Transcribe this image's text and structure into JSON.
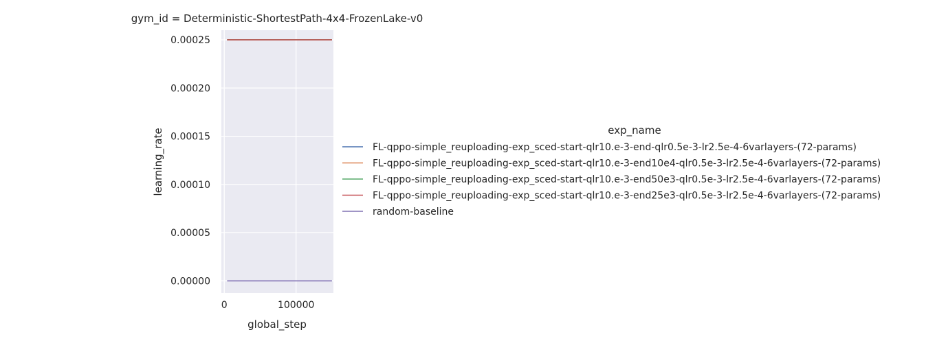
{
  "chart_data": {
    "type": "line",
    "title": "gym_id = Deterministic-ShortestPath-4x4-FrozenLake-v0",
    "xlabel": "global_step",
    "ylabel": "learning_rate",
    "xlim": [
      -4000,
      152000
    ],
    "ylim": [
      -1.25e-05,
      0.00026
    ],
    "xticks": [
      0,
      100000
    ],
    "xtick_labels": [
      "0",
      "100000"
    ],
    "yticks": [
      0,
      5e-05,
      0.0001,
      0.00015,
      0.0002,
      0.00025
    ],
    "ytick_labels": [
      "0.00000",
      "0.00005",
      "0.00010",
      "0.00015",
      "0.00020",
      "0.00025"
    ],
    "grid": true,
    "legend_title": "exp_name",
    "legend_placement": "right",
    "series": [
      {
        "name": "FL-qppo-simple_reuploading-exp_sced-start-qlr10.e-3-end-qlr0.5e-3-lr2.5e-4-6varlayers-(72-params)",
        "color": "#4c72b0",
        "x": [
          4000,
          150000
        ],
        "y": [
          0.00025,
          0.00025
        ]
      },
      {
        "name": "FL-qppo-simple_reuploading-exp_sced-start-qlr10.e-3-end10e4-qlr0.5e-3-lr2.5e-4-6varlayers-(72-params)",
        "color": "#dd8452",
        "x": [
          4000,
          150000
        ],
        "y": [
          0.00025,
          0.00025
        ]
      },
      {
        "name": "FL-qppo-simple_reuploading-exp_sced-start-qlr10.e-3-end50e3-qlr0.5e-3-lr2.5e-4-6varlayers-(72-params)",
        "color": "#55a868",
        "x": [
          4000,
          150000
        ],
        "y": [
          0.00025,
          0.00025
        ]
      },
      {
        "name": "FL-qppo-simple_reuploading-exp_sced-start-qlr10.e-3-end25e3-qlr0.5e-3-lr2.5e-4-6varlayers-(72-params)",
        "color": "#c44e52",
        "x": [
          4000,
          150000
        ],
        "y": [
          0.00025,
          0.00025
        ]
      },
      {
        "name": "random-baseline",
        "color": "#8172b3",
        "x": [
          4000,
          150000
        ],
        "y": [
          0,
          0
        ]
      }
    ]
  }
}
